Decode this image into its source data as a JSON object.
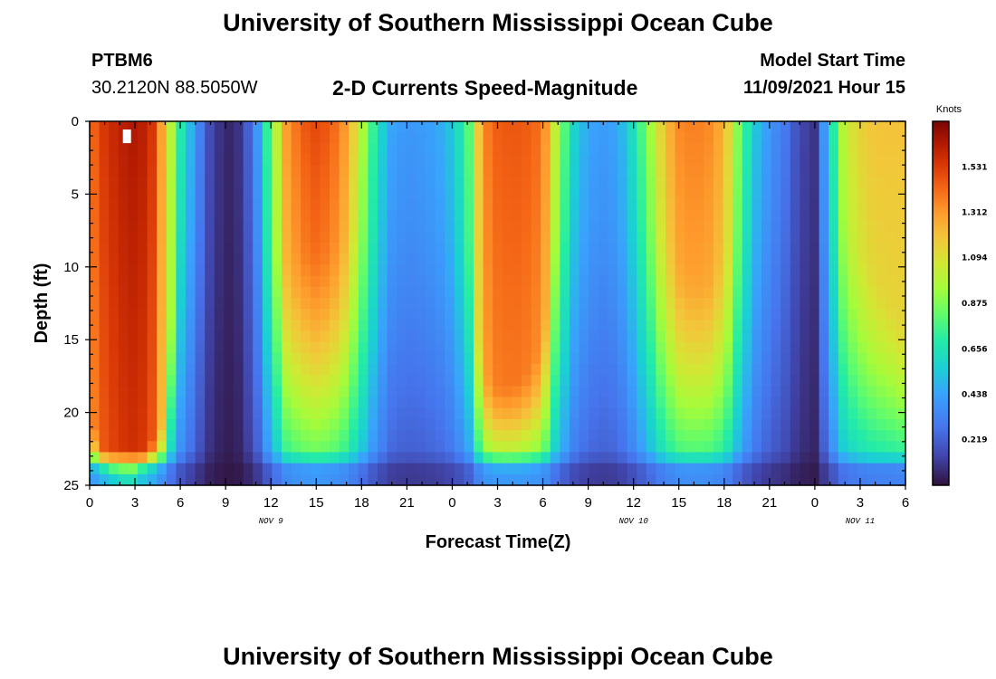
{
  "header": {
    "title": "University of Southern Mississippi Ocean Cube",
    "station": "PTBM6",
    "location": "30.2120N  88.5050W",
    "subtitle": "2-D Currents Speed-Magnitude",
    "model_start_label": "Model Start Time",
    "model_start_value": "11/09/2021 Hour 15"
  },
  "footer": {
    "title": "University of Southern Mississippi Ocean Cube"
  },
  "chart_data": {
    "type": "heatmap",
    "title": "2-D Currents Speed-Magnitude",
    "xlabel": "Forecast Time(Z)",
    "ylabel": "Depth (ft)",
    "x_ticks": [
      "0",
      "3",
      "6",
      "9",
      "12",
      "15",
      "18",
      "21",
      "0",
      "3",
      "6",
      "9",
      "12",
      "15",
      "18",
      "21",
      "0",
      "3",
      "6"
    ],
    "x_hours": [
      0,
      3,
      6,
      9,
      12,
      15,
      18,
      21,
      24,
      27,
      30,
      33,
      36,
      39,
      42,
      45,
      48,
      51,
      54
    ],
    "xlim": [
      0,
      54
    ],
    "y_ticks": [
      "0",
      "5",
      "10",
      "15",
      "20",
      "25"
    ],
    "y_values": [
      0,
      5,
      10,
      15,
      20,
      25
    ],
    "ylim": [
      0,
      25
    ],
    "date_labels": [
      {
        "text": "NOV 9",
        "hour": 12
      },
      {
        "text": "NOV 10",
        "hour": 36
      },
      {
        "text": "NOV 11",
        "hour": 51
      }
    ],
    "colorbar": {
      "unit": "Knots",
      "min": 0,
      "max": 1.75,
      "ticks": [
        "1.531",
        "1.312",
        "1.094",
        "0.875",
        "0.656",
        "0.438",
        "0.219"
      ],
      "tick_values": [
        1.531,
        1.312,
        1.094,
        0.875,
        0.656,
        0.438,
        0.219
      ]
    },
    "profiles_hours": [
      0,
      1,
      2,
      3,
      4,
      5,
      6,
      7,
      8,
      9,
      10,
      11,
      12,
      13,
      14,
      15,
      16,
      17,
      18,
      19,
      20,
      21,
      22,
      23,
      24,
      25,
      26,
      27,
      28,
      29,
      30,
      31,
      32,
      33,
      34,
      35,
      36,
      37,
      38,
      39,
      40,
      41,
      42,
      43,
      44,
      45,
      46,
      47,
      48,
      49,
      50,
      51,
      52,
      53,
      54
    ],
    "surface_speed_knots": [
      1.4,
      1.55,
      1.62,
      1.65,
      1.6,
      1.2,
      0.7,
      0.4,
      0.15,
      0.05,
      0.1,
      0.35,
      0.85,
      1.3,
      1.45,
      1.5,
      1.45,
      1.3,
      1.0,
      0.65,
      0.45,
      0.4,
      0.42,
      0.45,
      0.55,
      0.75,
      1.35,
      1.45,
      1.47,
      1.45,
      1.4,
      0.95,
      0.6,
      0.45,
      0.42,
      0.45,
      0.65,
      0.9,
      1.2,
      1.35,
      1.38,
      1.35,
      1.25,
      0.85,
      0.55,
      0.4,
      0.3,
      0.15,
      0.1,
      0.6,
      1.05,
      1.15,
      1.2,
      1.2,
      1.2
    ],
    "high_speed_depth_ft": [
      20,
      23,
      24,
      24,
      22,
      20,
      3,
      3,
      3,
      3,
      3,
      3,
      6,
      9,
      8,
      8,
      8,
      7,
      4,
      3,
      3,
      3,
      3,
      3,
      3,
      6,
      17,
      18,
      18,
      17,
      15,
      4,
      3,
      3,
      3,
      3,
      3,
      4,
      7,
      9,
      10,
      10,
      9,
      6,
      3,
      3,
      3,
      3,
      3,
      4,
      6,
      8,
      10,
      12,
      14
    ],
    "missing_cell": {
      "hour": 2.5,
      "depth_ft": 1
    }
  }
}
